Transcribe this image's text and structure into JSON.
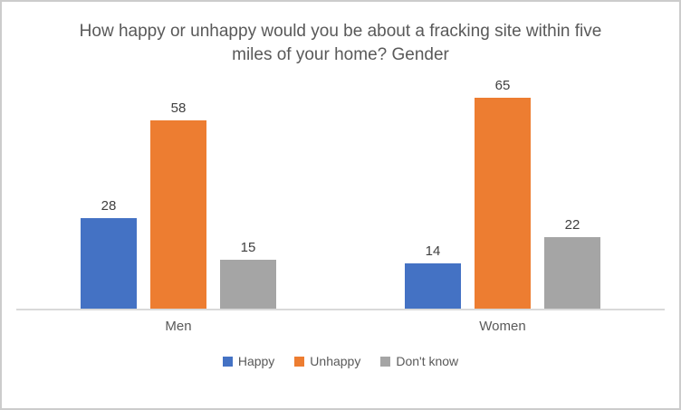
{
  "title": "How happy or unhappy would you be about a fracking site within five miles of your home? Gender",
  "chart_data": {
    "type": "bar",
    "title": "How happy or unhappy would you be about a fracking site within five miles of your home? Gender",
    "categories": [
      "Men",
      "Women"
    ],
    "series": [
      {
        "name": "Happy",
        "color": "#4472C4",
        "values": [
          28,
          14
        ]
      },
      {
        "name": "Unhappy",
        "color": "#ED7D31",
        "values": [
          58,
          65
        ]
      },
      {
        "name": "Don't know",
        "color": "#A5A5A5",
        "values": [
          15,
          22
        ]
      }
    ],
    "xlabel": "",
    "ylabel": "",
    "ylim": [
      0,
      72
    ],
    "grid": false,
    "data_labels": true,
    "legend_position": "bottom"
  },
  "colors": {
    "title_text": "#595959",
    "value_label_text": "#404040",
    "category_label_text": "#595959",
    "axis_line": "#D9D9D9",
    "frame_border": "#CCCCCC",
    "background": "#FFFFFF"
  }
}
